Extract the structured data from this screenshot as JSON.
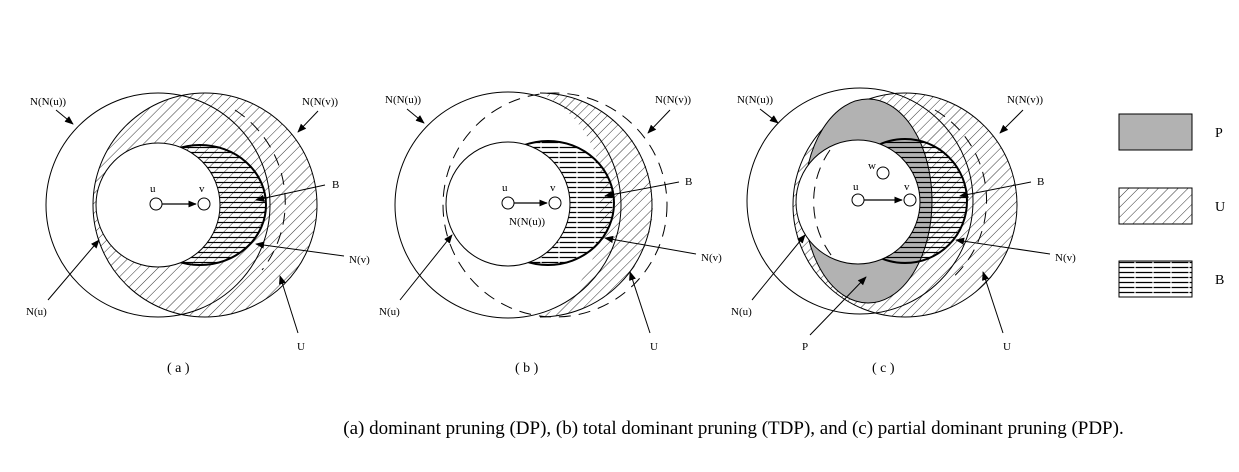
{
  "caption": "(a) dominant pruning (DP), (b) total dominant pruning (TDP), and (c) partial dominant pruning (PDP).",
  "legend": [
    {
      "key": "P",
      "pattern": "gray-fill"
    },
    {
      "key": "U",
      "pattern": "diagonal-hatch"
    },
    {
      "key": "B",
      "pattern": "horizontal-lines"
    }
  ],
  "colors": {
    "p_fill": "#b2b2b2",
    "stroke": "#000000",
    "background": "#ffffff"
  },
  "panels": {
    "a": {
      "sublabel": "( a )",
      "labels": {
        "nnu": "N(N(u))",
        "nnv": "N(N(v))",
        "b": "B",
        "nv": "N(v)",
        "nu": "N(u)",
        "uset": "U"
      },
      "nodes": {
        "u": "u",
        "v": "v"
      }
    },
    "b": {
      "sublabel": "( b )",
      "labels": {
        "nnu": "N(N(u))",
        "nnv": "N(N(v))",
        "b": "B",
        "nv": "N(v)",
        "nu": "N(u)",
        "uset": "U",
        "nnu_inner": "N(N(u))"
      },
      "nodes": {
        "u": "u",
        "v": "v"
      }
    },
    "c": {
      "sublabel": "( c )",
      "labels": {
        "nnu": "N(N(u))",
        "nnv": "N(N(v))",
        "b": "B",
        "nv": "N(v)",
        "nu": "N(u)",
        "uset": "U",
        "p": "P"
      },
      "nodes": {
        "u": "u",
        "v": "v",
        "w": "w"
      }
    }
  }
}
